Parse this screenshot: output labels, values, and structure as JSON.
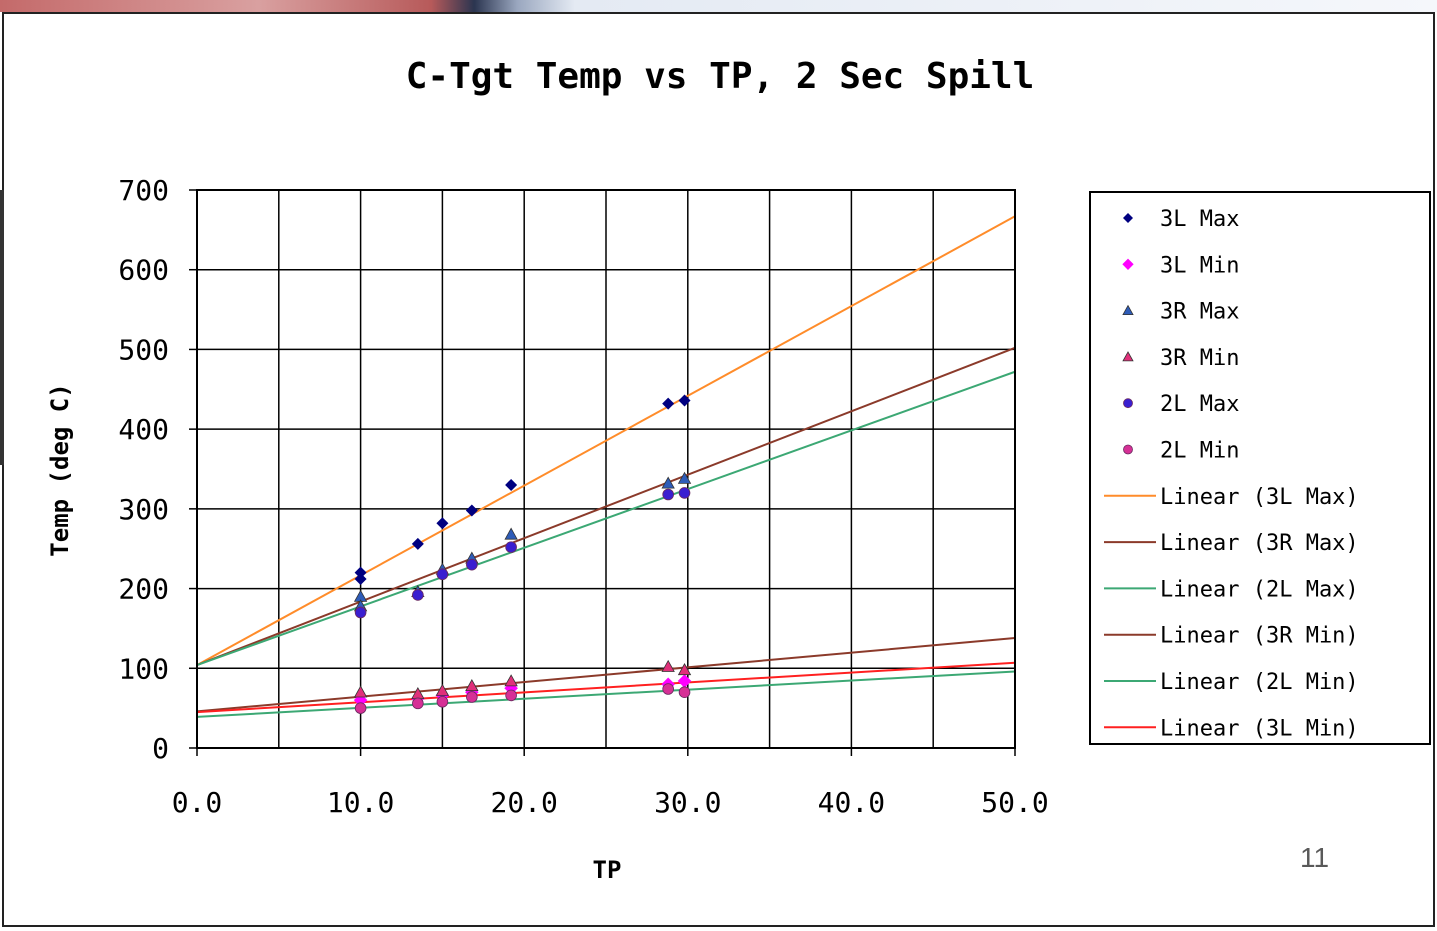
{
  "slide": {
    "page_number": "11"
  },
  "chart_data": {
    "type": "scatter",
    "title": "C-Tgt Temp vs TP, 2 Sec Spill",
    "xlabel": "TP",
    "ylabel": "Temp (deg C)",
    "xlim": [
      0,
      50
    ],
    "ylim": [
      0,
      700
    ],
    "x_ticks": [
      "0.0",
      "10.0",
      "20.0",
      "30.0",
      "40.0",
      "50.0"
    ],
    "y_ticks": [
      "0",
      "100",
      "200",
      "300",
      "400",
      "500",
      "600",
      "700"
    ],
    "x_grid_step": 5,
    "y_grid_step": 100,
    "grid": true,
    "legend_position": "right",
    "series": [
      {
        "name": "3L Max",
        "marker": "diamond",
        "color": "#000080",
        "points": [
          [
            10,
            220
          ],
          [
            10,
            212
          ],
          [
            13.5,
            256
          ],
          [
            15,
            282
          ],
          [
            16.8,
            298
          ],
          [
            19.2,
            330
          ],
          [
            28.8,
            432
          ],
          [
            29.8,
            436
          ]
        ]
      },
      {
        "name": "3L Min",
        "marker": "square",
        "color": "#ff00ff",
        "points": [
          [
            10,
            60
          ],
          [
            13.5,
            62
          ],
          [
            15,
            66
          ],
          [
            16.8,
            70
          ],
          [
            19.2,
            75
          ],
          [
            28.8,
            80
          ],
          [
            29.8,
            84
          ]
        ]
      },
      {
        "name": "3R Max",
        "marker": "triangle",
        "color": "#2e5cb8",
        "points": [
          [
            10,
            190
          ],
          [
            10,
            178
          ],
          [
            13.5,
            196
          ],
          [
            15,
            224
          ],
          [
            16.8,
            238
          ],
          [
            19.2,
            268
          ],
          [
            28.8,
            332
          ],
          [
            29.8,
            338
          ]
        ]
      },
      {
        "name": "3R Min",
        "marker": "triangle",
        "color": "#e0307a",
        "points": [
          [
            10,
            70
          ],
          [
            13.5,
            68
          ],
          [
            15,
            72
          ],
          [
            16.8,
            78
          ],
          [
            19.2,
            84
          ],
          [
            28.8,
            102
          ],
          [
            29.8,
            98
          ]
        ]
      },
      {
        "name": "2L Max",
        "marker": "circle",
        "color": "#3a1fd0",
        "points": [
          [
            10,
            170
          ],
          [
            13.5,
            192
          ],
          [
            15,
            218
          ],
          [
            16.8,
            230
          ],
          [
            19.2,
            252
          ],
          [
            28.8,
            318
          ],
          [
            29.8,
            320
          ]
        ]
      },
      {
        "name": "2L Min",
        "marker": "circle",
        "color": "#d63096",
        "points": [
          [
            10,
            50
          ],
          [
            13.5,
            56
          ],
          [
            15,
            58
          ],
          [
            16.8,
            64
          ],
          [
            19.2,
            66
          ],
          [
            28.8,
            74
          ],
          [
            29.8,
            70
          ]
        ]
      }
    ],
    "trendlines": [
      {
        "name": "Linear (3L Max)",
        "color": "#ff8c2a",
        "x": [
          0,
          50
        ],
        "y": [
          104,
          667
        ]
      },
      {
        "name": "Linear (3R Max)",
        "color": "#8b3a2a",
        "x": [
          0,
          50
        ],
        "y": [
          104,
          502
        ]
      },
      {
        "name": "Linear (2L Max)",
        "color": "#3ca874",
        "x": [
          0,
          50
        ],
        "y": [
          104,
          472
        ]
      },
      {
        "name": "Linear (3R Min)",
        "color": "#8b3a2a",
        "x": [
          0,
          50
        ],
        "y": [
          46,
          138
        ]
      },
      {
        "name": "Linear (2L Min)",
        "color": "#3ca874",
        "x": [
          0,
          50
        ],
        "y": [
          39,
          96
        ]
      },
      {
        "name": "Linear (3L Min)",
        "color": "#ff2020",
        "x": [
          0,
          50
        ],
        "y": [
          45,
          107
        ]
      }
    ]
  }
}
